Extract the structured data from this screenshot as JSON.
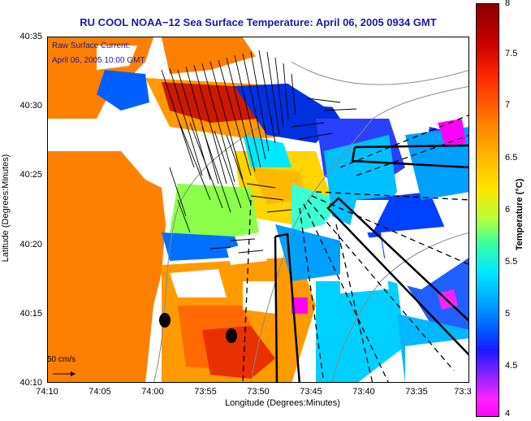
{
  "title": "RU COOL  NOAA−12  Sea Surface Temperature:  April 06, 2005 0934 GMT",
  "legend": {
    "line1": "Raw Surface Current:",
    "line2": "April 06, 2005 10:00 GMT"
  },
  "scale_label": "50 cm/s",
  "axes": {
    "xlabel": "Longitude (Degrees:Minutes)",
    "ylabel": "Latitude (Degrees:Minutes)",
    "xticks": [
      "74:10",
      "74:05",
      "74:00",
      "73:55",
      "73:50",
      "73:45",
      "73:40",
      "73:35",
      "73:3"
    ],
    "yticks": [
      "40:35",
      "40:30",
      "40:25",
      "40:20",
      "40:15",
      "40:10"
    ]
  },
  "colorbar": {
    "title": "Temperature (°C)",
    "ticks": [
      "8",
      "7.5",
      "7",
      "6.5",
      "6",
      "5.5",
      "5",
      "4.5",
      "4"
    ],
    "range": [
      4,
      8
    ]
  },
  "colors": {
    "land": "#ff8000",
    "title": "#1a1aa8"
  }
}
